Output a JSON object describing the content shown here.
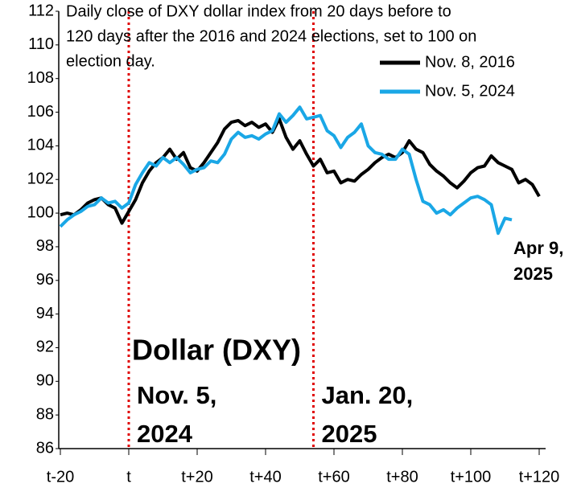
{
  "chart_data": {
    "type": "line",
    "title": [
      "Daily close of DXY dollar index from 20 days before to",
      "120 days after the 2016 and 2024 elections, set to 100 on",
      "election day."
    ],
    "x": [
      -20,
      -18,
      -16,
      -14,
      -12,
      -10,
      -8,
      -6,
      -4,
      -2,
      0,
      2,
      4,
      6,
      8,
      10,
      12,
      14,
      16,
      18,
      20,
      22,
      24,
      26,
      28,
      30,
      32,
      34,
      36,
      38,
      40,
      42,
      44,
      46,
      48,
      50,
      52,
      54,
      56,
      58,
      60,
      62,
      64,
      66,
      68,
      70,
      72,
      74,
      76,
      78,
      80,
      82,
      84,
      86,
      88,
      90,
      92,
      94,
      96,
      98,
      100,
      102,
      104,
      106,
      108,
      110,
      112,
      114,
      116,
      118,
      120
    ],
    "series": [
      {
        "name": "Nov. 8, 2016",
        "color": "#000000",
        "values": [
          99.9,
          100.0,
          99.9,
          100.2,
          100.6,
          100.8,
          100.9,
          100.5,
          100.3,
          99.4,
          100.1,
          100.8,
          101.8,
          102.5,
          103.0,
          103.3,
          103.8,
          103.2,
          103.6,
          102.7,
          102.5,
          103.0,
          103.6,
          104.2,
          105.0,
          105.4,
          105.5,
          105.2,
          105.4,
          105.1,
          105.3,
          104.8,
          105.6,
          104.5,
          103.8,
          104.3,
          103.5,
          102.8,
          103.2,
          102.4,
          102.5,
          101.8,
          102.0,
          101.9,
          102.3,
          102.6,
          103.0,
          103.3,
          103.5,
          103.3,
          103.6,
          104.3,
          103.8,
          103.6,
          102.9,
          102.5,
          102.2,
          101.8,
          101.5,
          101.9,
          102.4,
          102.7,
          102.8,
          103.4,
          103.0,
          102.8,
          102.6,
          101.8,
          102.0,
          101.7,
          101.0
        ]
      },
      {
        "name": "Nov. 5, 2024",
        "color": "#1aa7e6",
        "values": [
          99.2,
          99.6,
          99.9,
          100.1,
          100.4,
          100.5,
          100.9,
          100.6,
          100.7,
          100.3,
          100.6,
          101.7,
          102.4,
          103.0,
          102.8,
          103.3,
          103.0,
          103.3,
          102.9,
          102.4,
          102.6,
          102.7,
          103.1,
          103.0,
          103.5,
          104.4,
          104.8,
          104.5,
          104.6,
          104.4,
          104.7,
          104.9,
          105.9,
          105.4,
          105.8,
          106.3,
          105.6,
          105.7,
          105.8,
          104.9,
          104.6,
          103.9,
          104.5,
          104.8,
          105.3,
          104.0,
          103.6,
          103.5,
          103.2,
          103.2,
          103.8,
          103.5,
          102.0,
          100.7,
          100.5,
          100.0,
          100.2,
          99.9,
          100.3,
          100.6,
          100.9,
          101.0,
          100.8,
          100.5,
          98.8,
          99.7,
          99.6,
          null,
          null,
          null,
          null
        ]
      }
    ],
    "xlim": [
      -20,
      120
    ],
    "xticks": [
      {
        "value": -20,
        "label": "t-20"
      },
      {
        "value": 0,
        "label": "t"
      },
      {
        "value": 20,
        "label": "t+20"
      },
      {
        "value": 40,
        "label": "t+40"
      },
      {
        "value": 60,
        "label": "t+60"
      },
      {
        "value": 80,
        "label": "t+80"
      },
      {
        "value": 100,
        "label": "t+100"
      },
      {
        "value": 120,
        "label": "t+120"
      }
    ],
    "ylim": [
      86,
      112
    ],
    "yticks": [
      86,
      88,
      90,
      92,
      94,
      96,
      98,
      100,
      102,
      104,
      106,
      108,
      110,
      112
    ],
    "legend": "upper right",
    "annotations": {
      "chart_label": "Dollar (DXY)",
      "events": [
        {
          "x": 0,
          "label": [
            "Nov. 5,",
            "2024"
          ],
          "color": "#e00000"
        },
        {
          "x": 54,
          "label": [
            "Jan. 20,",
            "2025"
          ],
          "color": "#e00000"
        }
      ],
      "end_label": {
        "label": [
          "Apr 9,",
          "2025"
        ],
        "color": "#1aa7e6"
      }
    }
  }
}
